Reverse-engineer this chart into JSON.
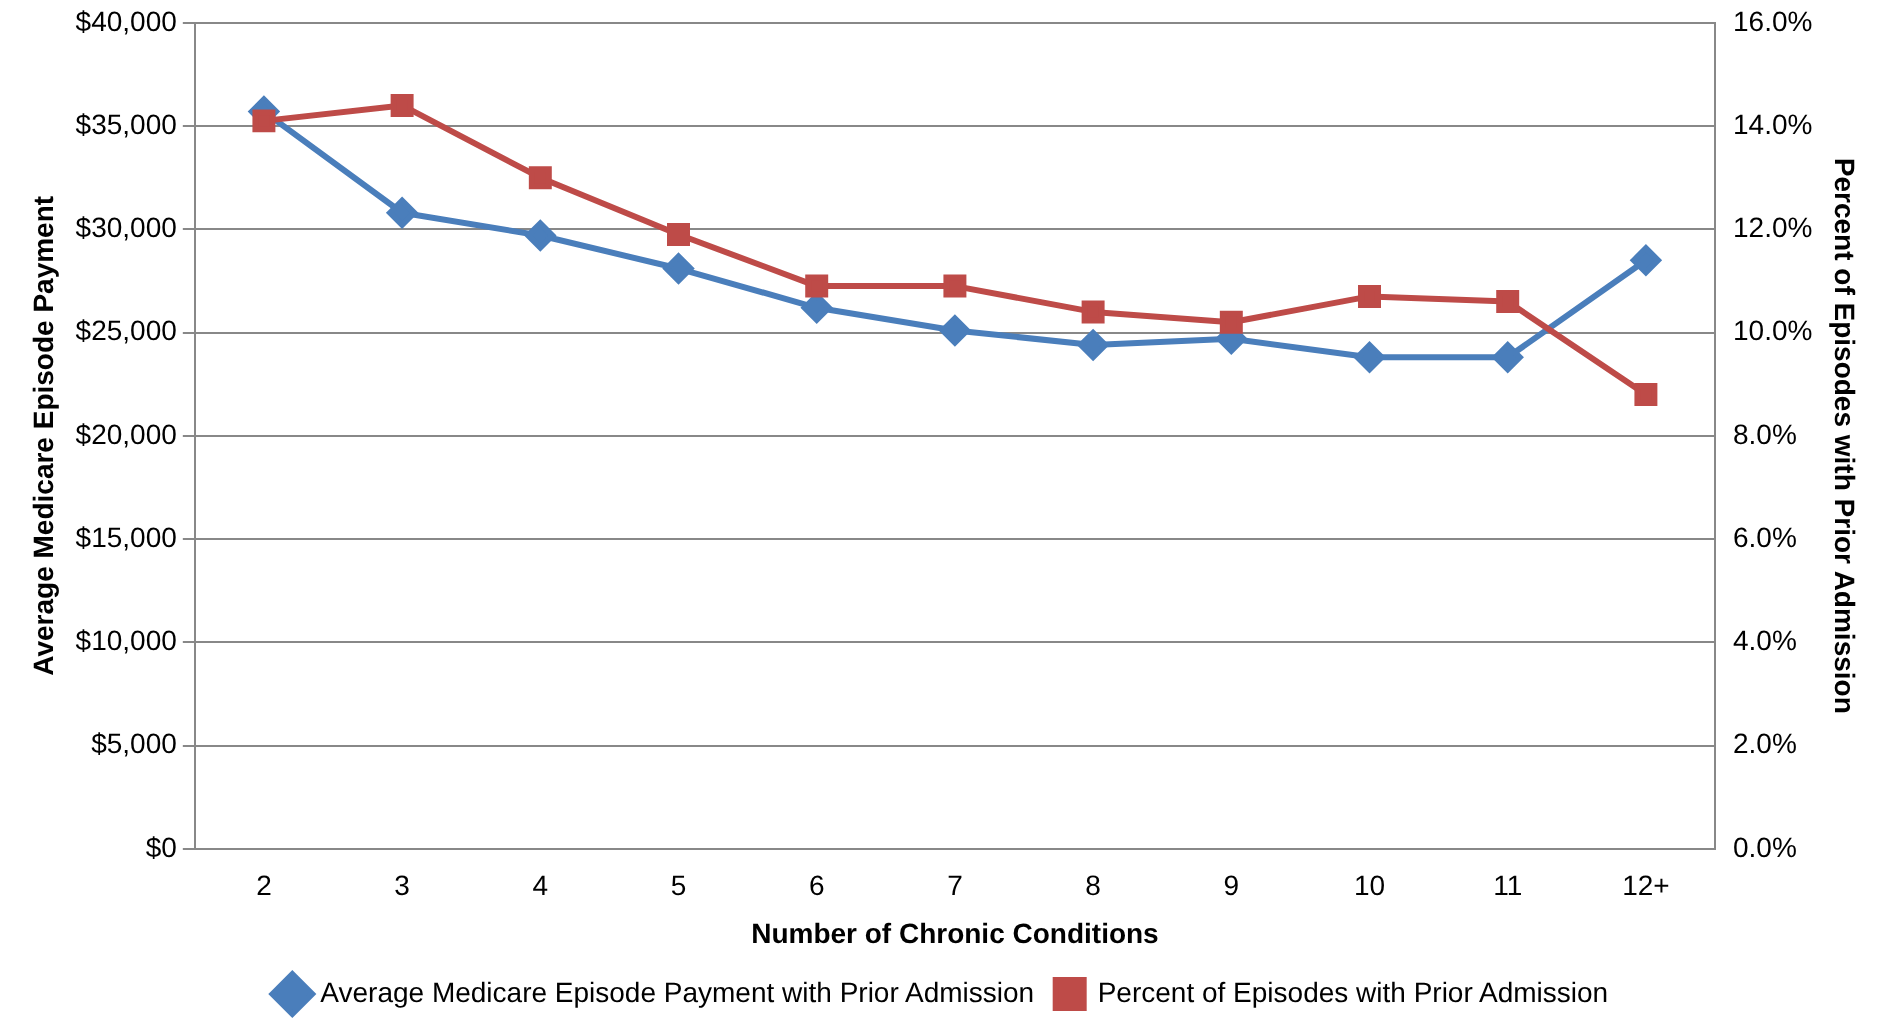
{
  "chart_data": {
    "type": "line",
    "xlabel": "Number of Chronic Conditions",
    "ylabel": "Average Medicare Episode Payment",
    "y2label": "Percent of Episodes with Prior Admission",
    "categories": [
      "2",
      "3",
      "4",
      "5",
      "6",
      "7",
      "8",
      "9",
      "10",
      "11",
      "12+"
    ],
    "series": [
      {
        "name": "Average Medicare Episode Payment with Prior Admission",
        "color": "#4a7ebb",
        "marker": "diamond",
        "values": [
          35700,
          30800,
          29700,
          28100,
          26200,
          25100,
          24400,
          24700,
          23800,
          23800,
          28500
        ]
      },
      {
        "name": "Percent of Episodes with Prior Admission",
        "color": "#be4b48",
        "marker": "square",
        "axis": "y2",
        "values": [
          14.1,
          14.4,
          13.0,
          11.9,
          10.9,
          10.9,
          10.4,
          10.2,
          10.7,
          10.6,
          8.8
        ]
      }
    ],
    "ylim": [
      0,
      40000
    ],
    "yticks": [
      {
        "value": 0,
        "label": "$0"
      },
      {
        "value": 5000,
        "label": "$5,000"
      },
      {
        "value": 10000,
        "label": "$10,000"
      },
      {
        "value": 15000,
        "label": "$15,000"
      },
      {
        "value": 20000,
        "label": "$20,000"
      },
      {
        "value": 25000,
        "label": "$25,000"
      },
      {
        "value": 30000,
        "label": "$30,000"
      },
      {
        "value": 35000,
        "label": "$35,000"
      },
      {
        "value": 40000,
        "label": "$40,000"
      }
    ],
    "y2lim": [
      0,
      16
    ],
    "y2ticks": [
      {
        "value": 0,
        "label": "0.0%"
      },
      {
        "value": 2,
        "label": "2.0%"
      },
      {
        "value": 4,
        "label": "4.0%"
      },
      {
        "value": 6,
        "label": "6.0%"
      },
      {
        "value": 8,
        "label": "8.0%"
      },
      {
        "value": 10,
        "label": "10.0%"
      },
      {
        "value": 12,
        "label": "12.0%"
      },
      {
        "value": 14,
        "label": "14.0%"
      },
      {
        "value": 16,
        "label": "16.0%"
      }
    ],
    "grid": "y",
    "legend": "bottom",
    "line_style": "solid"
  }
}
